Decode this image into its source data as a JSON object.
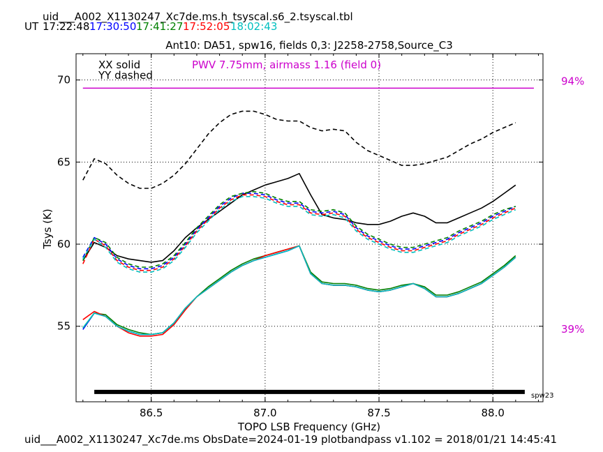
{
  "header": {
    "filename": "uid___A002_X1130247_Xc7de.ms.h_tsyscal.s6_2.tsyscal.tbl",
    "ut_label": "UT",
    "times": [
      {
        "text": "17:22:48",
        "color": "#000000"
      },
      {
        "text": "17:30:50",
        "color": "#0000ff"
      },
      {
        "text": "17:41:27",
        "color": "#008000"
      },
      {
        "text": "17:52:05",
        "color": "#ff0000"
      },
      {
        "text": "18:02:43",
        "color": "#00bfbf"
      }
    ]
  },
  "footer": {
    "text": "uid___A002_X1130247_Xc7de.ms  ObsDate=2024-01-19   plotbandpass v1.102 = 2018/01/21 14:45:41"
  },
  "chart_data": {
    "type": "line",
    "title": "Ant10: DA51,  spw16,  fields 0,3: J2258-2758,Source_C3",
    "xlabel": "TOPO LSB Frequency (GHz)",
    "ylabel": "Tsys (K)",
    "xlim": [
      86.17,
      88.22
    ],
    "ylim": [
      50.4,
      71.6
    ],
    "xticks": [
      86.5,
      87.0,
      87.5,
      88.0
    ],
    "xtick_labels": [
      "86.5",
      "87.0",
      "87.5",
      "88.0"
    ],
    "yticks": [
      55,
      60,
      65,
      70
    ],
    "ytick_labels": [
      "55",
      "60",
      "65",
      "70"
    ],
    "grid": true,
    "legend_texts": [
      "XX solid",
      "YY dashed"
    ],
    "pwv_text": "PWV 7.75mm, airmass 1.16 (field 0)",
    "pwv_color": "#cc00cc",
    "right_labels": [
      {
        "text": "94%",
        "y": 69.7
      },
      {
        "text": "39%",
        "y": 54.6
      }
    ],
    "atm_line": {
      "x": [
        86.2,
        88.18
      ],
      "y": [
        69.5,
        69.5
      ],
      "color": "#cc00cc"
    },
    "spw_bar": {
      "label": "spw23",
      "x": [
        86.25,
        88.14
      ],
      "y": 51.0
    },
    "series": [
      {
        "color": "#000000",
        "style": "solid",
        "x": [
          86.2,
          86.25,
          86.3,
          86.35,
          86.4,
          86.45,
          86.5,
          86.55,
          86.6,
          86.65,
          86.7,
          86.75,
          86.8,
          86.85,
          86.9,
          86.95,
          87.0,
          87.05,
          87.1,
          87.15,
          87.2,
          87.25,
          87.3,
          87.35,
          87.4,
          87.45,
          87.5,
          87.55,
          87.6,
          87.65,
          87.7,
          87.75,
          87.8,
          87.85,
          87.9,
          87.95,
          88.0,
          88.05,
          88.1
        ],
        "y": [
          59.0,
          60.1,
          59.8,
          59.3,
          59.1,
          59.0,
          58.9,
          59.0,
          59.6,
          60.4,
          61.0,
          61.5,
          62.0,
          62.5,
          63.0,
          63.3,
          63.6,
          63.8,
          64.0,
          64.3,
          63.0,
          61.8,
          61.6,
          61.5,
          61.3,
          61.2,
          61.2,
          61.4,
          61.7,
          61.9,
          61.7,
          61.3,
          61.3,
          61.6,
          61.9,
          62.2,
          62.6,
          63.1,
          63.6
        ]
      },
      {
        "color": "#000000",
        "style": "dashed",
        "x": [
          86.2,
          86.25,
          86.3,
          86.35,
          86.4,
          86.45,
          86.5,
          86.55,
          86.6,
          86.65,
          86.7,
          86.75,
          86.8,
          86.85,
          86.9,
          86.95,
          87.0,
          87.05,
          87.1,
          87.15,
          87.2,
          87.25,
          87.3,
          87.35,
          87.4,
          87.45,
          87.5,
          87.55,
          87.6,
          87.65,
          87.7,
          87.75,
          87.8,
          87.85,
          87.9,
          87.95,
          88.0,
          88.05,
          88.1
        ],
        "y": [
          63.9,
          65.2,
          64.9,
          64.2,
          63.7,
          63.4,
          63.4,
          63.7,
          64.2,
          64.9,
          65.8,
          66.7,
          67.4,
          67.9,
          68.1,
          68.1,
          67.9,
          67.6,
          67.5,
          67.5,
          67.1,
          66.9,
          67.0,
          66.9,
          66.2,
          65.7,
          65.4,
          65.1,
          64.8,
          64.8,
          64.9,
          65.1,
          65.3,
          65.7,
          66.1,
          66.4,
          66.8,
          67.1,
          67.4
        ]
      },
      {
        "color": "#0000ff",
        "style": "solid",
        "x": [
          86.2,
          86.25,
          86.3,
          86.35,
          86.4,
          86.45,
          86.5,
          86.55,
          86.6,
          86.65,
          86.7,
          86.75,
          86.8,
          86.85,
          86.9,
          86.95,
          87.0,
          87.05,
          87.1,
          87.15,
          87.2,
          87.25,
          87.3,
          87.35,
          87.4,
          87.45,
          87.5,
          87.55,
          87.6,
          87.65,
          87.7,
          87.75,
          87.8,
          87.85,
          87.9,
          87.95,
          88.0,
          88.05,
          88.1
        ],
        "y": [
          54.8,
          55.8,
          55.6,
          55.0,
          54.7,
          54.5,
          54.5,
          54.6,
          55.2,
          56.1,
          56.8,
          57.3,
          57.8,
          58.3,
          58.7,
          59.0,
          59.2,
          59.4,
          59.6,
          59.9,
          58.2,
          57.6,
          57.5,
          57.5,
          57.4,
          57.2,
          57.1,
          57.2,
          57.4,
          57.6,
          57.3,
          56.8,
          56.8,
          57.0,
          57.3,
          57.6,
          58.1,
          58.6,
          59.2
        ]
      },
      {
        "color": "#008000",
        "style": "solid",
        "x": [
          86.2,
          86.25,
          86.3,
          86.35,
          86.4,
          86.45,
          86.5,
          86.55,
          86.6,
          86.65,
          86.7,
          86.75,
          86.8,
          86.85,
          86.9,
          86.95,
          87.0,
          87.05,
          87.1,
          87.15,
          87.2,
          87.25,
          87.3,
          87.35,
          87.4,
          87.45,
          87.5,
          87.55,
          87.6,
          87.65,
          87.7,
          87.75,
          87.8,
          87.85,
          87.9,
          87.95,
          88.0,
          88.05,
          88.1
        ],
        "y": [
          54.9,
          55.8,
          55.7,
          55.1,
          54.8,
          54.6,
          54.5,
          54.6,
          55.2,
          56.1,
          56.8,
          57.4,
          57.9,
          58.4,
          58.8,
          59.1,
          59.3,
          59.5,
          59.7,
          59.9,
          58.3,
          57.7,
          57.6,
          57.6,
          57.5,
          57.3,
          57.2,
          57.3,
          57.5,
          57.6,
          57.4,
          56.9,
          56.9,
          57.1,
          57.4,
          57.7,
          58.2,
          58.7,
          59.3
        ]
      },
      {
        "color": "#ff0000",
        "style": "solid",
        "x": [
          86.2,
          86.25,
          86.3,
          86.35,
          86.4,
          86.45,
          86.5,
          86.55,
          86.6,
          86.65,
          86.7,
          86.75,
          86.8,
          86.85,
          86.9,
          86.95,
          87.0,
          87.05,
          87.1,
          87.15,
          87.2,
          87.25,
          87.3,
          87.35,
          87.4,
          87.45,
          87.5,
          87.55,
          87.6,
          87.65,
          87.7,
          87.75,
          87.8,
          87.85,
          87.9,
          87.95,
          88.0,
          88.05,
          88.1
        ],
        "y": [
          55.4,
          55.9,
          55.6,
          55.0,
          54.6,
          54.4,
          54.4,
          54.5,
          55.1,
          56.0,
          56.8,
          57.3,
          57.8,
          58.3,
          58.7,
          59.0,
          59.3,
          59.5,
          59.7,
          59.9,
          58.2,
          57.6,
          57.5,
          57.5,
          57.4,
          57.2,
          57.1,
          57.2,
          57.4,
          57.6,
          57.3,
          56.8,
          56.8,
          57.0,
          57.3,
          57.6,
          58.1,
          58.6,
          59.2
        ]
      },
      {
        "color": "#00bfbf",
        "style": "solid",
        "x": [
          86.2,
          86.25,
          86.3,
          86.35,
          86.4,
          86.45,
          86.5,
          86.55,
          86.6,
          86.65,
          86.7,
          86.75,
          86.8,
          86.85,
          86.9,
          86.95,
          87.0,
          87.05,
          87.1,
          87.15,
          87.2,
          87.25,
          87.3,
          87.35,
          87.4,
          87.45,
          87.5,
          87.55,
          87.6,
          87.65,
          87.7,
          87.75,
          87.8,
          87.85,
          87.9,
          87.95,
          88.0,
          88.05,
          88.1
        ],
        "y": [
          54.9,
          55.8,
          55.6,
          55.0,
          54.7,
          54.5,
          54.5,
          54.6,
          55.2,
          56.1,
          56.8,
          57.3,
          57.8,
          58.3,
          58.7,
          59.0,
          59.2,
          59.4,
          59.6,
          59.9,
          58.2,
          57.6,
          57.5,
          57.5,
          57.4,
          57.2,
          57.1,
          57.2,
          57.4,
          57.6,
          57.3,
          56.8,
          56.8,
          57.0,
          57.3,
          57.6,
          58.1,
          58.6,
          59.2
        ]
      },
      {
        "color": "#0000ff",
        "style": "dashed",
        "x": [
          86.2,
          86.25,
          86.3,
          86.35,
          86.4,
          86.45,
          86.5,
          86.55,
          86.6,
          86.65,
          86.7,
          86.75,
          86.8,
          86.85,
          86.9,
          86.95,
          87.0,
          87.05,
          87.1,
          87.15,
          87.2,
          87.25,
          87.3,
          87.35,
          87.4,
          87.45,
          87.5,
          87.55,
          87.6,
          87.65,
          87.7,
          87.75,
          87.8,
          87.85,
          87.9,
          87.95,
          88.0,
          88.05,
          88.1
        ],
        "y": [
          59.2,
          60.4,
          60.0,
          59.1,
          58.7,
          58.5,
          58.5,
          58.7,
          59.2,
          60.0,
          60.9,
          61.6,
          62.3,
          62.8,
          63.1,
          63.1,
          63.0,
          62.7,
          62.5,
          62.5,
          62.0,
          61.9,
          62.0,
          61.8,
          61.0,
          60.5,
          60.2,
          59.9,
          59.7,
          59.7,
          59.9,
          60.1,
          60.3,
          60.7,
          61.0,
          61.3,
          61.7,
          62.0,
          62.3
        ]
      },
      {
        "color": "#008000",
        "style": "dashed",
        "x": [
          86.2,
          86.25,
          86.3,
          86.35,
          86.4,
          86.45,
          86.5,
          86.55,
          86.6,
          86.65,
          86.7,
          86.75,
          86.8,
          86.85,
          86.9,
          86.95,
          87.0,
          87.05,
          87.1,
          87.15,
          87.2,
          87.25,
          87.3,
          87.35,
          87.4,
          87.45,
          87.5,
          87.55,
          87.6,
          87.65,
          87.7,
          87.75,
          87.8,
          87.85,
          87.9,
          87.95,
          88.0,
          88.05,
          88.1
        ],
        "y": [
          59.0,
          60.4,
          60.1,
          59.2,
          58.8,
          58.6,
          58.6,
          58.8,
          59.3,
          60.1,
          61.0,
          61.7,
          62.4,
          62.9,
          63.1,
          63.2,
          63.1,
          62.8,
          62.6,
          62.6,
          62.1,
          62.0,
          62.1,
          61.9,
          61.1,
          60.6,
          60.3,
          60.0,
          59.8,
          59.8,
          60.0,
          60.2,
          60.4,
          60.8,
          61.1,
          61.4,
          61.8,
          62.1,
          62.3
        ]
      },
      {
        "color": "#ff0000",
        "style": "dashed",
        "x": [
          86.2,
          86.25,
          86.3,
          86.35,
          86.4,
          86.45,
          86.5,
          86.55,
          86.6,
          86.65,
          86.7,
          86.75,
          86.8,
          86.85,
          86.9,
          86.95,
          87.0,
          87.05,
          87.1,
          87.15,
          87.2,
          87.25,
          87.3,
          87.35,
          87.4,
          87.45,
          87.5,
          87.55,
          87.6,
          87.65,
          87.7,
          87.75,
          87.8,
          87.85,
          87.9,
          87.95,
          88.0,
          88.05,
          88.1
        ],
        "y": [
          58.8,
          60.3,
          59.9,
          59.0,
          58.6,
          58.4,
          58.4,
          58.6,
          59.1,
          59.9,
          60.8,
          61.5,
          62.2,
          62.7,
          63.0,
          63.0,
          62.9,
          62.6,
          62.4,
          62.4,
          61.9,
          61.8,
          61.9,
          61.7,
          60.9,
          60.4,
          60.1,
          59.8,
          59.6,
          59.6,
          59.8,
          60.0,
          60.2,
          60.6,
          60.9,
          61.2,
          61.6,
          61.9,
          62.2
        ]
      },
      {
        "color": "#00bfbf",
        "style": "dashed",
        "x": [
          86.2,
          86.25,
          86.3,
          86.35,
          86.4,
          86.45,
          86.5,
          86.55,
          86.6,
          86.65,
          86.7,
          86.75,
          86.8,
          86.85,
          86.9,
          86.95,
          87.0,
          87.05,
          87.1,
          87.15,
          87.2,
          87.25,
          87.3,
          87.35,
          87.4,
          87.45,
          87.5,
          87.55,
          87.6,
          87.65,
          87.7,
          87.75,
          87.8,
          87.85,
          87.9,
          87.95,
          88.0,
          88.05,
          88.1
        ],
        "y": [
          59.1,
          60.3,
          59.8,
          58.9,
          58.5,
          58.3,
          58.3,
          58.5,
          59.0,
          59.8,
          60.7,
          61.4,
          62.1,
          62.6,
          62.9,
          62.9,
          62.8,
          62.5,
          62.3,
          62.3,
          61.8,
          61.7,
          61.8,
          61.6,
          60.8,
          60.3,
          60.0,
          59.7,
          59.5,
          59.5,
          59.7,
          59.9,
          60.1,
          60.5,
          60.8,
          61.1,
          61.5,
          61.8,
          62.1
        ]
      }
    ]
  }
}
